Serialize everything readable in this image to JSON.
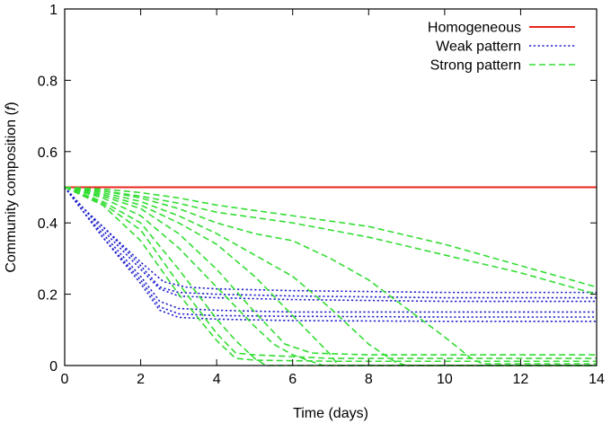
{
  "chart_data": {
    "type": "line",
    "title": "",
    "xlabel": "Time (days)",
    "ylabel_main": "Community composition (",
    "ylabel_var": "f",
    "ylabel_close": ")",
    "xlim": [
      0,
      14
    ],
    "ylim": [
      0,
      1
    ],
    "xticks": [
      0,
      2,
      4,
      6,
      8,
      10,
      12,
      14
    ],
    "xtick_labels": [
      "0",
      "2",
      "4",
      "6",
      "8",
      "10",
      "12",
      "14"
    ],
    "yticks": [
      0,
      0.2,
      0.4,
      0.6,
      0.8,
      1
    ],
    "ytick_labels": [
      "0",
      "0.2",
      "0.4",
      "0.6",
      "0.8",
      "1"
    ],
    "grid": false,
    "legend_position": "top-right",
    "groups": [
      {
        "name": "Homogeneous",
        "color": "#e8261c",
        "style": "solid",
        "series": [
          {
            "x": [
              0,
              14
            ],
            "y": [
              0.5,
              0.5
            ]
          }
        ]
      },
      {
        "name": "Weak pattern",
        "color": "#2222cc",
        "style": "dotted",
        "series": [
          {
            "x": [
              0,
              0.5,
              1,
              2,
              2.6,
              3.2,
              4,
              6,
              10,
              14
            ],
            "y": [
              0.5,
              0.44,
              0.39,
              0.29,
              0.235,
              0.22,
              0.215,
              0.21,
              0.205,
              0.205
            ]
          },
          {
            "x": [
              0,
              0.5,
              1,
              2,
              2.5,
              3,
              4,
              6,
              10,
              14
            ],
            "y": [
              0.5,
              0.44,
              0.39,
              0.28,
              0.22,
              0.205,
              0.2,
              0.195,
              0.19,
              0.19
            ]
          },
          {
            "x": [
              0,
              0.5,
              1,
              2,
              2.5,
              3,
              4,
              6,
              10,
              14
            ],
            "y": [
              0.5,
              0.44,
              0.38,
              0.27,
              0.215,
              0.195,
              0.19,
              0.185,
              0.18,
              0.18
            ]
          },
          {
            "x": [
              0,
              0.5,
              1,
              2,
              2.5,
              3,
              4,
              6,
              10,
              14
            ],
            "y": [
              0.5,
              0.43,
              0.37,
              0.25,
              0.18,
              0.16,
              0.155,
              0.15,
              0.15,
              0.15
            ]
          },
          {
            "x": [
              0,
              0.5,
              1,
              2,
              2.5,
              3,
              4,
              6,
              10,
              14
            ],
            "y": [
              0.5,
              0.43,
              0.36,
              0.24,
              0.165,
              0.145,
              0.14,
              0.138,
              0.136,
              0.136
            ]
          },
          {
            "x": [
              0,
              0.5,
              1,
              2,
              2.5,
              3,
              4,
              6,
              10,
              14
            ],
            "y": [
              0.5,
              0.43,
              0.36,
              0.23,
              0.155,
              0.135,
              0.13,
              0.126,
              0.124,
              0.124
            ]
          }
        ]
      },
      {
        "name": "Strong pattern",
        "color": "#33dd33",
        "style": "dashed",
        "series": [
          {
            "x": [
              0,
              1,
              2,
              3,
              4,
              6,
              8,
              10,
              12,
              14
            ],
            "y": [
              0.5,
              0.495,
              0.485,
              0.47,
              0.45,
              0.42,
              0.39,
              0.34,
              0.28,
              0.22
            ]
          },
          {
            "x": [
              0,
              1,
              2,
              3,
              4,
              6,
              8,
              10,
              12,
              14
            ],
            "y": [
              0.5,
              0.49,
              0.475,
              0.455,
              0.43,
              0.4,
              0.36,
              0.31,
              0.26,
              0.2
            ]
          },
          {
            "x": [
              0,
              1,
              2,
              3,
              4,
              5,
              6,
              7,
              8,
              9,
              10,
              10.7,
              11,
              14
            ],
            "y": [
              0.5,
              0.49,
              0.47,
              0.44,
              0.4,
              0.37,
              0.35,
              0.3,
              0.24,
              0.16,
              0.08,
              0.02,
              0.005,
              0.005
            ]
          },
          {
            "x": [
              0,
              1,
              2,
              3,
              4,
              5,
              6,
              7,
              8,
              8.7,
              9,
              14
            ],
            "y": [
              0.5,
              0.485,
              0.46,
              0.42,
              0.37,
              0.31,
              0.25,
              0.16,
              0.06,
              0.01,
              0.0,
              0.0
            ]
          },
          {
            "x": [
              0,
              1,
              2,
              3,
              4,
              5,
              6,
              7,
              7.2,
              8,
              14
            ],
            "y": [
              0.5,
              0.48,
              0.45,
              0.4,
              0.34,
              0.25,
              0.14,
              0.03,
              0.0,
              0.0,
              0.0
            ]
          },
          {
            "x": [
              0,
              1,
              2,
              3,
              4,
              5,
              5.8,
              6.5,
              8,
              14
            ],
            "y": [
              0.5,
              0.475,
              0.44,
              0.37,
              0.27,
              0.15,
              0.06,
              0.035,
              0.03,
              0.03
            ]
          },
          {
            "x": [
              0,
              1,
              2,
              3,
              4,
              5,
              5.5,
              6,
              6.8,
              8,
              14
            ],
            "y": [
              0.5,
              0.47,
              0.42,
              0.33,
              0.22,
              0.11,
              0.06,
              0.03,
              0.0,
              0.0,
              0.0
            ]
          },
          {
            "x": [
              0,
              1,
              2,
              3,
              3.5,
              4,
              4.5,
              5,
              5.3,
              6,
              14
            ],
            "y": [
              0.5,
              0.46,
              0.4,
              0.27,
              0.2,
              0.13,
              0.07,
              0.02,
              0.0,
              0.0,
              0.0
            ]
          },
          {
            "x": [
              0,
              1,
              2,
              3,
              3.5,
              4,
              4.5,
              5,
              7,
              14
            ],
            "y": [
              0.5,
              0.455,
              0.38,
              0.23,
              0.16,
              0.09,
              0.035,
              0.03,
              0.02,
              0.02
            ]
          },
          {
            "x": [
              0,
              1,
              2,
              3,
              4,
              4.5,
              5,
              7,
              14
            ],
            "y": [
              0.5,
              0.45,
              0.35,
              0.2,
              0.07,
              0.02,
              0.015,
              0.012,
              0.012
            ]
          }
        ]
      }
    ]
  }
}
